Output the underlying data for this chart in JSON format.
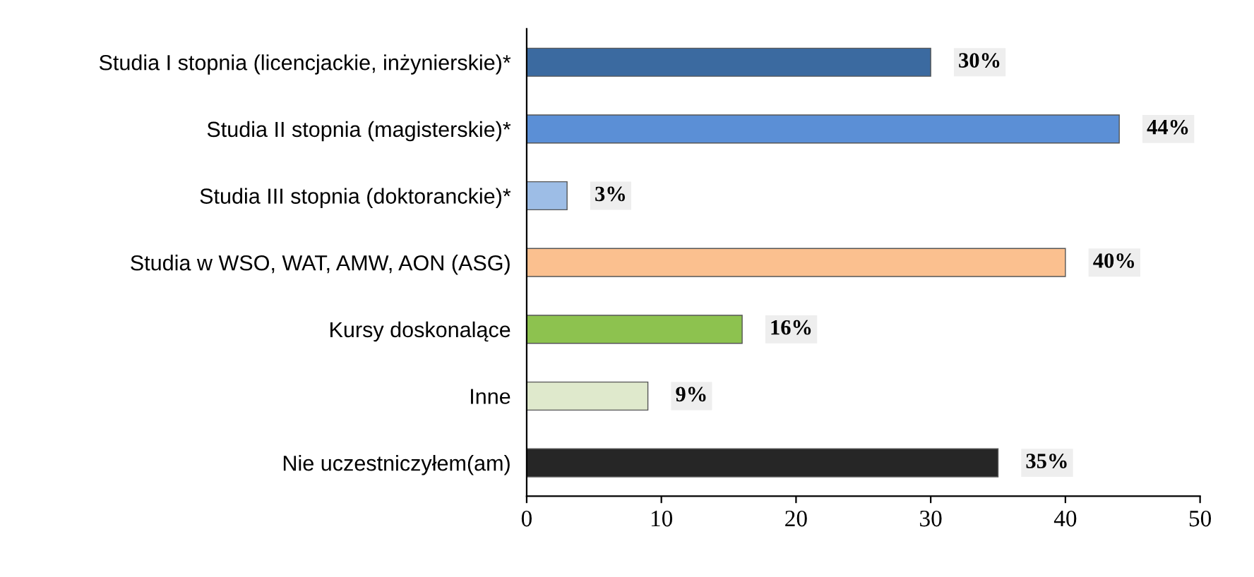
{
  "chart_data": {
    "type": "bar",
    "orientation": "horizontal",
    "categories": [
      "Studia I stopnia (licencjackie, inżynierskie)*",
      "Studia II stopnia (magisterskie)*",
      "Studia III stopnia (doktoranckie)*",
      "Studia w WSO, WAT, AMW, AON (ASG)",
      "Kursy doskonalące",
      "Inne",
      "Nie uczestniczyłem(am)"
    ],
    "values": [
      30,
      44,
      3,
      40,
      16,
      9,
      35
    ],
    "colors": [
      "#3b6aa0",
      "#5b8fd6",
      "#9dbde6",
      "#fbc08f",
      "#8dc24f",
      "#dfe9cc",
      "#262626"
    ],
    "value_labels": [
      "30%",
      "44%",
      "3%",
      "40%",
      "16%",
      "9%",
      "35%"
    ],
    "xlim": [
      0,
      50
    ],
    "xticks": [
      0,
      10,
      20,
      30,
      40,
      50
    ],
    "grid": false,
    "legend": false
  }
}
